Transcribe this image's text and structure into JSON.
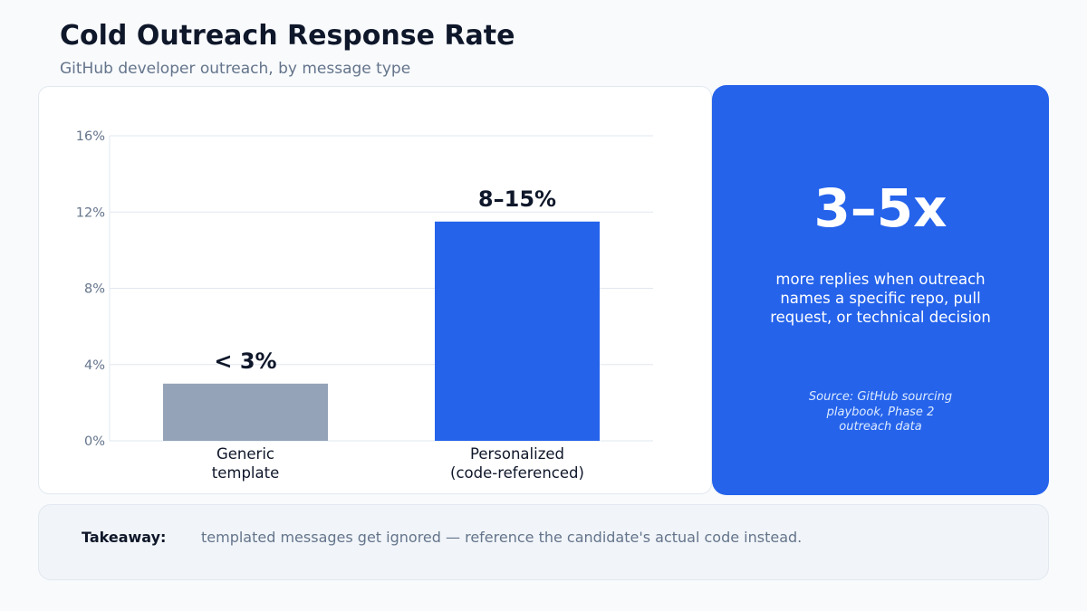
{
  "header": {
    "title": "Cold Outreach Response Rate",
    "subtitle": "GitHub developer outreach, by message type"
  },
  "chart_data": {
    "type": "bar",
    "categories": [
      [
        "Generic",
        "template"
      ],
      [
        "Personalized",
        "(code-referenced)"
      ]
    ],
    "values": [
      3,
      11.5
    ],
    "data_labels": [
      "< 3%",
      "8–15%"
    ],
    "colors": [
      "#94a3b8",
      "#2563eb"
    ],
    "ylim": [
      0,
      16
    ],
    "yticks": [
      0,
      4,
      8,
      12,
      16
    ],
    "ytick_labels": [
      "0%",
      "4%",
      "8%",
      "12%",
      "16%"
    ],
    "grid": true,
    "legend": "none"
  },
  "callout": {
    "headline": "3–5x",
    "description": "more replies when outreach names a specific repo, pull request, or technical decision",
    "source": "Source: GitHub sourcing playbook, Phase 2 outreach data"
  },
  "takeaway": {
    "label": "Takeaway:",
    "text": "templated messages get ignored — reference the candidate's actual code instead."
  }
}
